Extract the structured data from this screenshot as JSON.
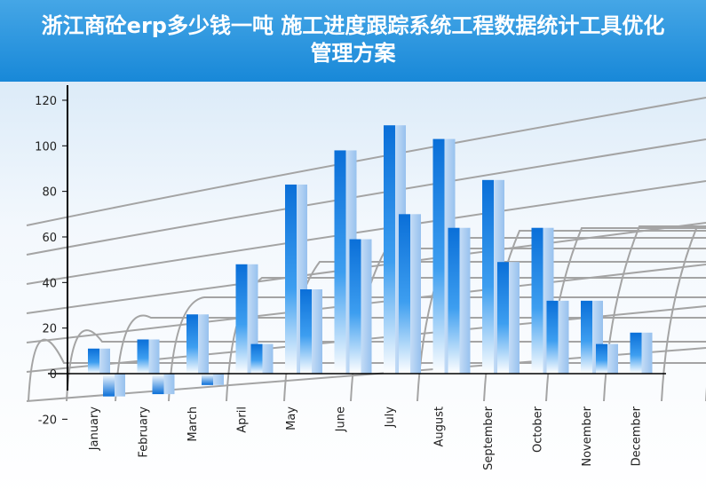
{
  "title": "浙江商砼erp多少钱一吨 施工进度跟踪系统工程数据统计工具优化管理方案",
  "colors": {
    "banner_top": "#45a6e6",
    "banner_bottom": "#1888d8",
    "bar_front_top": "#0a6fd8",
    "bar_front_bottom": "#ffffff",
    "bar_side": "#a9cdf4",
    "grid_3d": "#a4a4a4",
    "axis": "#000000"
  },
  "chart_data": {
    "type": "bar",
    "categories": [
      "January",
      "February",
      "March",
      "April",
      "May",
      "June",
      "July",
      "August",
      "September",
      "October",
      "November",
      "December"
    ],
    "series": [
      {
        "values": [
          11,
          15,
          26,
          48,
          83,
          98,
          109,
          103,
          85,
          64,
          32,
          18
        ]
      },
      {
        "values": [
          -10,
          -9,
          -5,
          13,
          37,
          59,
          70,
          64,
          49,
          32,
          13,
          null
        ]
      }
    ],
    "ylim": [
      -20,
      120
    ],
    "yticks": [
      -20,
      0,
      20,
      40,
      60,
      80,
      100,
      120
    ],
    "grid": false,
    "legend": "none"
  }
}
